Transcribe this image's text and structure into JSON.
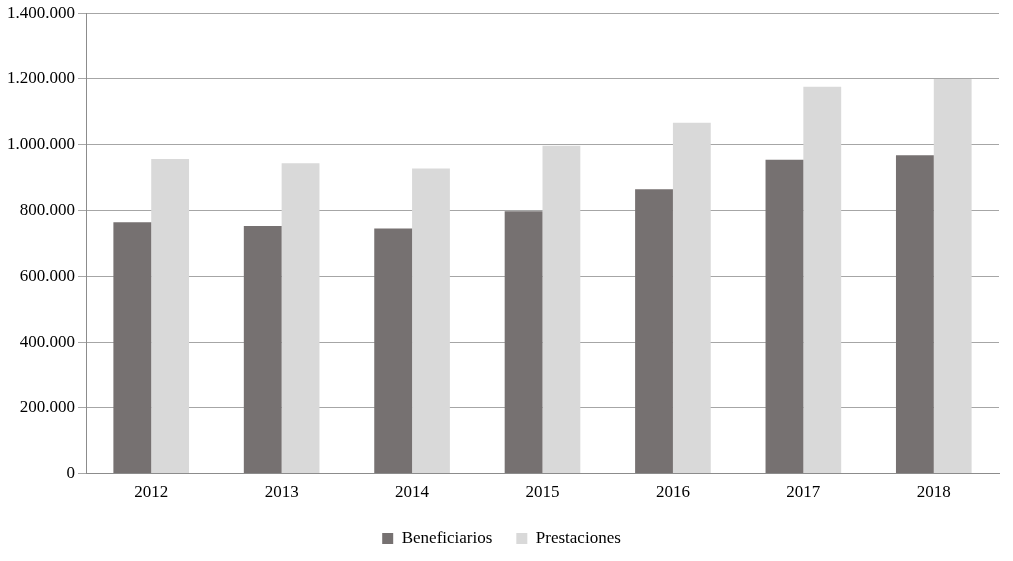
{
  "chart_data": {
    "type": "bar",
    "categories": [
      "2012",
      "2013",
      "2014",
      "2015",
      "2016",
      "2017",
      "2018"
    ],
    "series": [
      {
        "name": "Beneficiarios",
        "color": "#767171",
        "values": [
          764000,
          753000,
          745000,
          798000,
          865000,
          954000,
          968000
        ]
      },
      {
        "name": "Prestaciones",
        "color": "#d9d9d9",
        "values": [
          957000,
          944000,
          928000,
          997000,
          1067000,
          1176000,
          1200000
        ]
      }
    ],
    "ylim": [
      0,
      1400000
    ],
    "yticks": [
      {
        "value": 0,
        "label": "0"
      },
      {
        "value": 200000,
        "label": "200.000"
      },
      {
        "value": 400000,
        "label": "400.000"
      },
      {
        "value": 600000,
        "label": "600.000"
      },
      {
        "value": 800000,
        "label": "800.000"
      },
      {
        "value": 1000000,
        "label": "1.000.000"
      },
      {
        "value": 1200000,
        "label": "1.200.000"
      },
      {
        "value": 1400000,
        "label": "1.400.000"
      }
    ],
    "grid": "y",
    "legend": "bottom"
  }
}
